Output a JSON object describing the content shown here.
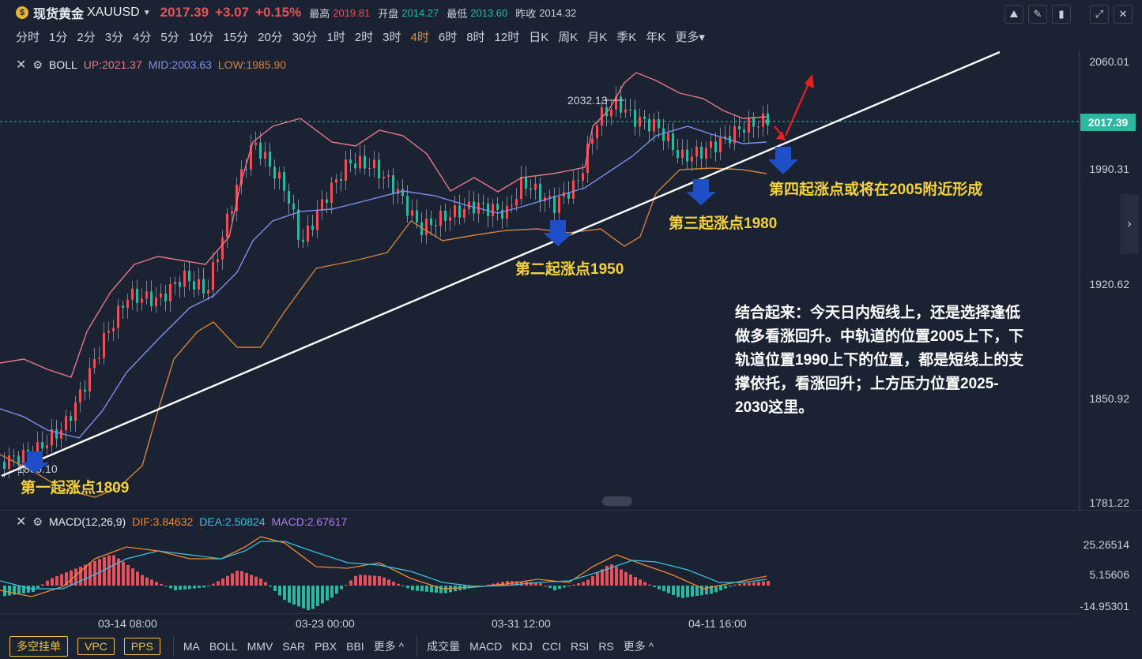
{
  "header": {
    "symbol_name": "现货黄金",
    "symbol_code": "XAUUSD",
    "price": "2017.39",
    "change": "+3.07",
    "change_pct": "+0.15%",
    "high_label": "最高",
    "high_value": "2019.81",
    "open_label": "开盘",
    "open_value": "2014.27",
    "low_label": "最低",
    "low_value": "2013.60",
    "prev_label": "昨收",
    "prev_value": "2014.32"
  },
  "periods": [
    "分时",
    "1分",
    "2分",
    "3分",
    "4分",
    "5分",
    "10分",
    "15分",
    "20分",
    "30分",
    "1时",
    "2时",
    "3时",
    "4时",
    "6时",
    "8时",
    "12时",
    "日K",
    "周K",
    "月K",
    "季K",
    "年K",
    "更多"
  ],
  "active_period": "4时",
  "boll_legend": {
    "name": "BOLL",
    "up": "UP:2021.37",
    "mid": "MID:2003.63",
    "low": "LOW:1985.90"
  },
  "price_axis": [
    "2060.01",
    "1990.31",
    "1920.62",
    "1850.92",
    "1781.22"
  ],
  "current_price_tag": "2017.39",
  "chart_labels": {
    "high_marker": "2032.13",
    "low_marker": "1809.10"
  },
  "annotations": {
    "point1": "第一起涨点1809",
    "point2": "第二起涨点1950",
    "point3": "第三起涨点1980",
    "point4": "第四起涨点或将在2005附近形成",
    "note": "结合起来：今天日内短线上，还是选择逢低做多看涨回升。中轨道的位置2005上下，下轨道位置1990上下的位置，都是短线上的支撑依托，看涨回升；上方压力位置2025-2030这里。"
  },
  "macd_legend": {
    "name": "MACD(12,26,9)",
    "dif": "DIF:3.84632",
    "dea": "DEA:2.50824",
    "macd": "MACD:2.67617"
  },
  "macd_axis": [
    "25.26514",
    "5.15606",
    "-14.95301"
  ],
  "time_axis": [
    "03-14 08:00",
    "03-23 00:00",
    "03-31 12:00",
    "04-11 16:00"
  ],
  "bottom_bar": {
    "buttons": [
      "多空挂单",
      "VPC",
      "PPS"
    ],
    "main_indicators": [
      "MA",
      "BOLL",
      "MMV",
      "SAR",
      "PBX",
      "BBI",
      "更多"
    ],
    "sub_indicators": [
      "成交量",
      "MACD",
      "KDJ",
      "CCI",
      "RSI",
      "RS",
      "更多"
    ]
  },
  "colors": {
    "background": "#1b2332",
    "up": "#e8515c",
    "down": "#2cb8a0",
    "boll_up": "#e8768c",
    "boll_mid": "#7f8ff0",
    "boll_low": "#d08040",
    "annotation": "#f5d23c",
    "arrow": "#1f4fc8"
  }
}
